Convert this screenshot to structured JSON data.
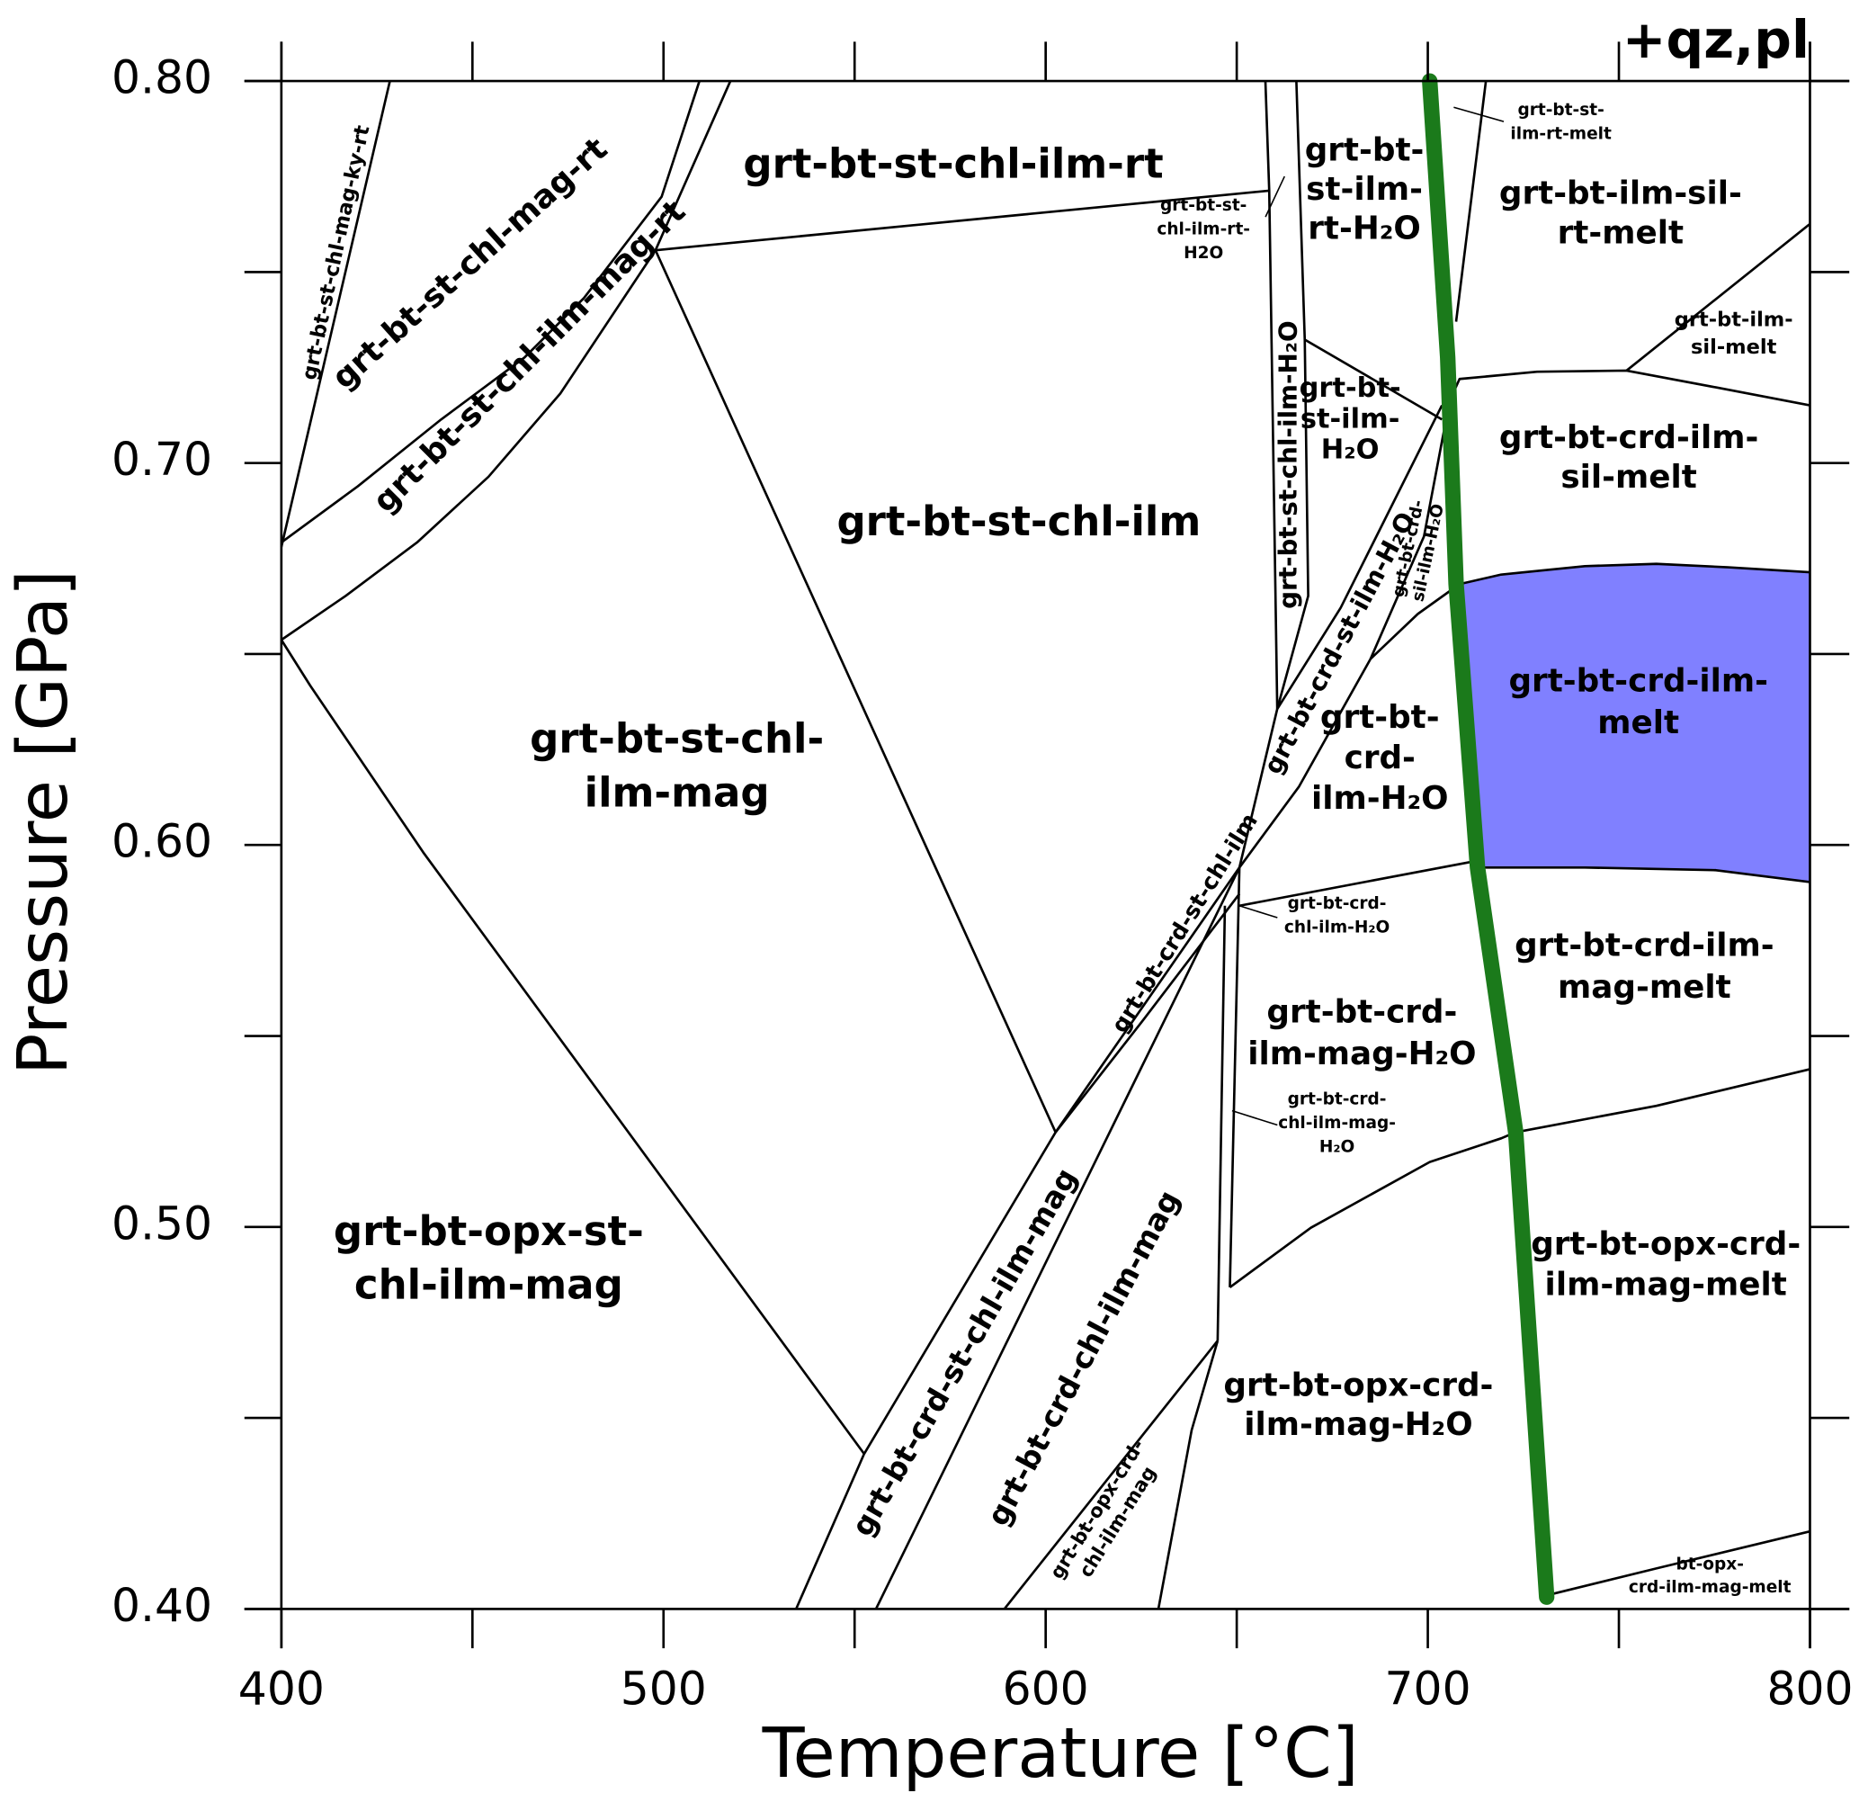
{
  "chart_data": {
    "type": "phase_diagram",
    "annotation": "+qz,pl",
    "xlabel": "Temperature [°C]",
    "ylabel": "Pressure [GPa]",
    "xlim": [
      400,
      800
    ],
    "ylim": [
      0.4,
      0.8
    ],
    "xticks": [
      400,
      500,
      600,
      700,
      800
    ],
    "xminor_ticks": [
      450,
      550,
      650,
      750
    ],
    "yticks": [
      {
        "value": 0.4,
        "label": "0.40"
      },
      {
        "value": 0.5,
        "label": "0.50"
      },
      {
        "value": 0.6,
        "label": "0.60"
      },
      {
        "value": 0.7,
        "label": "0.70"
      },
      {
        "value": 0.8,
        "label": "0.80"
      }
    ],
    "yminor_ticks": [
      0.45,
      0.55,
      0.65,
      0.75
    ],
    "boundary_color": "#000000",
    "boundaries": [
      {
        "x": [
          400,
          428.4
        ],
        "y": [
          0.678,
          0.8
        ]
      },
      {
        "x": [
          400,
          420.0,
          441.8,
          463.6,
          479.2,
          499.5,
          509.4
        ],
        "y": [
          0.6792,
          0.6939,
          0.7114,
          0.7276,
          0.7432,
          0.7697,
          0.8
        ]
      },
      {
        "x": [
          400,
          416.8,
          435.5,
          454.2,
          473.0,
          497.9,
          517.5
        ],
        "y": [
          0.6537,
          0.6652,
          0.6792,
          0.6964,
          0.7182,
          0.7557,
          0.8
        ]
      },
      {
        "x": [
          497.9,
          658.5
        ],
        "y": [
          0.7557,
          0.7713
        ]
      },
      {
        "x": [
          497.9,
          602.6
        ],
        "y": [
          0.7557,
          0.5248
        ]
      },
      {
        "x": [
          400,
          407.5,
          437.1,
          552.5
        ],
        "y": [
          0.6537,
          0.6418,
          0.5981,
          0.4406
        ]
      },
      {
        "x": [
          552.5,
          534.7
        ],
        "y": [
          0.4406,
          0.4
        ]
      },
      {
        "x": [
          602.6,
          552.5
        ],
        "y": [
          0.5248,
          0.4406
        ]
      },
      {
        "x": [
          602.6,
          625.7,
          650.7
        ],
        "y": [
          0.5248,
          0.5544,
          0.5872
        ]
      },
      {
        "x": [
          602.6,
          650.7,
          660.6
        ],
        "y": [
          0.5248,
          0.5941,
          0.6356
        ]
      },
      {
        "x": [
          650.7,
          666.3,
          685.0,
          697.4,
          708.3
        ],
        "y": [
          0.5941,
          0.6153,
          0.6487,
          0.6605,
          0.6683
        ]
      },
      {
        "x": [
          660.6,
          677.2,
          703.7
        ],
        "y": [
          0.6356,
          0.6621,
          0.7151
        ]
      },
      {
        "x": [
          685.0,
          699.0,
          705.2
        ],
        "y": [
          0.6487,
          0.6808,
          0.7136
        ]
      },
      {
        "x": [
          657.5,
          658.5,
          660.6
        ],
        "y": [
          0.8,
          0.7713,
          0.6356
        ]
      },
      {
        "x": [
          665.6,
          667.8,
          668.7,
          660.6
        ],
        "y": [
          0.8,
          0.7323,
          0.6652,
          0.6356
        ]
      },
      {
        "x": [
          667.8,
          703.7
        ],
        "y": [
          0.7323,
          0.7114
        ]
      },
      {
        "x": [
          715.2,
          707.4
        ],
        "y": [
          0.8,
          0.737
        ]
      },
      {
        "x": [
          705.2,
          708.3,
          728.6,
          752.0,
          775.4,
          800
        ],
        "y": [
          0.7151,
          0.722,
          0.7239,
          0.7242,
          0.7198,
          0.7151
        ]
      },
      {
        "x": [
          752.0,
          800
        ],
        "y": [
          0.7242,
          0.7626
        ]
      },
      {
        "x": [
          708.3,
          719.2,
          741.1,
          759.8,
          778.5,
          800
        ],
        "y": [
          0.6683,
          0.6708,
          0.673,
          0.6736,
          0.6727,
          0.6714
        ]
      },
      {
        "x": [
          713.0,
          741.1,
          775.4,
          800
        ],
        "y": [
          0.5941,
          0.5941,
          0.5934,
          0.5903
        ]
      },
      {
        "x": [
          650.7,
          713.0
        ],
        "y": [
          0.5841,
          0.5959
        ]
      },
      {
        "x": [
          650.7,
          648.2
        ],
        "y": [
          0.5941,
          0.4842
        ]
      },
      {
        "x": [
          646.9,
          645.0
        ],
        "y": [
          0.5841,
          0.4702
        ]
      },
      {
        "x": [
          555.6,
          650.7
        ],
        "y": [
          0.4,
          0.5941
        ]
      },
      {
        "x": [
          589.2,
          645.0
        ],
        "y": [
          0.4,
          0.4702
        ]
      },
      {
        "x": [
          629.5,
          638.2,
          645.0
        ],
        "y": [
          0.4,
          0.4468,
          0.4702
        ]
      },
      {
        "x": [
          648.2,
          669.4,
          700.5,
          719.2,
          723.0
        ],
        "y": [
          0.4842,
          0.4998,
          0.517,
          0.5232,
          0.5248
        ]
      },
      {
        "x": [
          723.0,
          759.8,
          800
        ],
        "y": [
          0.5248,
          0.5317,
          0.5413
        ]
      },
      {
        "x": [
          731.7,
          759.8,
          800
        ],
        "y": [
          0.4037,
          0.4106,
          0.4203
        ]
      }
    ],
    "shaded_field": {
      "color": "#8080ff",
      "x": [
        708.3,
        719.2,
        741.1,
        759.8,
        778.5,
        800,
        800,
        775.4,
        741.1,
        713.0
      ],
      "y": [
        0.6683,
        0.6708,
        0.673,
        0.6736,
        0.6727,
        0.6714,
        0.5903,
        0.5934,
        0.5941,
        0.5941
      ]
    },
    "path": {
      "color": "#1b7a1b",
      "x": [
        700.5,
        705.2,
        707.4,
        713.0,
        723.0,
        731.1
      ],
      "y": [
        0.8,
        0.7276,
        0.6683,
        0.5941,
        0.5248,
        0.4031
      ]
    },
    "fields": [
      {
        "label": [
          "grt-bt-st-chl-ilm-rt"
        ]
      },
      {
        "label": [
          "grt-bt-st-chl-ilm"
        ]
      },
      {
        "label": [
          "grt-bt-st-chl-",
          "ilm-mag"
        ]
      },
      {
        "label": [
          "grt-bt-opx-st-",
          "chl-ilm-mag"
        ]
      },
      {
        "label": [
          "grt-bt-st-chl-mag-ky-rt"
        ]
      },
      {
        "label": [
          "grt-bt-st-chl-mag-rt"
        ]
      },
      {
        "label": [
          "grt-bt-st-chl-ilm-mag-rt"
        ]
      },
      {
        "label": [
          "grt-bt-st-",
          "chl-ilm-rt-",
          "H2O"
        ]
      },
      {
        "label": [
          "grt-bt-",
          "st-ilm-",
          "rt-H₂O"
        ]
      },
      {
        "label": [
          "grt-bt-st-",
          "ilm-rt-melt"
        ]
      },
      {
        "label": [
          "grt-bt-ilm-sil-",
          "rt-melt"
        ]
      },
      {
        "label": [
          "grt-bt-ilm-",
          "sil-melt"
        ]
      },
      {
        "label": [
          "grt-bt-st-chl-ilm-H₂O"
        ]
      },
      {
        "label": [
          "grt-bt-",
          "st-ilm-",
          "H₂O"
        ]
      },
      {
        "label": [
          "grt-bt-crd-",
          "sil-ilm-H₂O"
        ]
      },
      {
        "label": [
          "grt-bt-crd-st-ilm-H₂O"
        ]
      },
      {
        "label": [
          "grt-bt-crd-ilm-",
          "sil-melt"
        ]
      },
      {
        "label": [
          "grt-bt-crd-ilm-",
          "melt"
        ]
      },
      {
        "label": [
          "grt-bt-",
          "crd-",
          "ilm-H₂O"
        ]
      },
      {
        "label": [
          "grt-bt-crd-st-chl-ilm"
        ]
      },
      {
        "label": [
          "grt-bt-crd-",
          "chl-ilm-H₂O"
        ]
      },
      {
        "label": [
          "grt-bt-crd-ilm-",
          "mag-melt"
        ]
      },
      {
        "label": [
          "grt-bt-crd-",
          "ilm-mag-H₂O"
        ]
      },
      {
        "label": [
          "grt-bt-crd-",
          "chl-ilm-mag-",
          "H₂O"
        ]
      },
      {
        "label": [
          "grt-bt-opx-crd-",
          "ilm-mag-melt"
        ]
      },
      {
        "label": [
          "grt-bt-crd-st-chl-ilm-mag"
        ]
      },
      {
        "label": [
          "grt-bt-crd-chl-ilm-mag"
        ]
      },
      {
        "label": [
          "grt-bt-opx-crd-",
          "chl-ilm-mag"
        ]
      },
      {
        "label": [
          "grt-bt-opx-crd-",
          "ilm-mag-H₂O"
        ]
      },
      {
        "label": [
          "bt-opx-",
          "crd-ilm-mag-melt"
        ]
      }
    ]
  }
}
